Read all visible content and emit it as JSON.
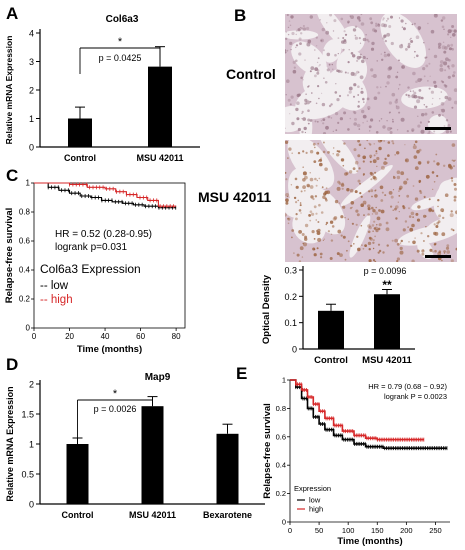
{
  "panels": {
    "A": "A",
    "B": "B",
    "C": "C",
    "D": "D",
    "E": "E"
  },
  "panel_b": {
    "control_label": "Control",
    "treated_label": "MSU 42011",
    "colors": {
      "tissue": "#d7c2cf",
      "lumen": "#f2eef0",
      "stain_control": "#9d7b8b",
      "stain_treated": "#9a5f3a"
    }
  },
  "chart_data": [
    {
      "panel": "A",
      "type": "bar",
      "title": "Col6a3",
      "ylabel": "Relative mRNA Expression",
      "categories": [
        "Control",
        "MSU 42011"
      ],
      "values": [
        1.0,
        2.82
      ],
      "errors": [
        0.4,
        0.7
      ],
      "ylim": [
        0,
        4
      ],
      "yticks": [
        0,
        1,
        2,
        3,
        4
      ],
      "annotation": {
        "star": "*",
        "p": "p = 0.0425"
      },
      "bar_color": "#000000"
    },
    {
      "panel": "B",
      "type": "bar",
      "ylabel": "Optical Density",
      "categories": [
        "Control",
        "MSU 42011"
      ],
      "values": [
        0.145,
        0.208
      ],
      "errors": [
        0.025,
        0.018
      ],
      "ylim": [
        0,
        0.3
      ],
      "yticks": [
        0,
        0.1,
        0.2,
        0.3
      ],
      "annotation": {
        "p": "p = 0.0096",
        "star": "**"
      },
      "bar_color": "#000000"
    },
    {
      "panel": "C",
      "type": "line",
      "xlabel": "Time (months)",
      "ylabel": "Relapse-free survival",
      "xlim": [
        0,
        85
      ],
      "ylim": [
        0,
        1
      ],
      "xticks": [
        0,
        20,
        40,
        60,
        80
      ],
      "yticks": [
        0,
        0.2,
        0.4,
        0.6,
        0.8,
        1
      ],
      "text_hr": "HR = 0.52 (0.28-0.95)",
      "text_p": "logrank p=0.031",
      "legend_title": "Col6a3 Expression",
      "legend_labels": [
        "-- low",
        "-- high"
      ],
      "series": [
        {
          "name": "low",
          "color": "#000000",
          "x": [
            0,
            8,
            14,
            20,
            26,
            32,
            38,
            44,
            50,
            56,
            62,
            70,
            80
          ],
          "y": [
            1.0,
            0.97,
            0.95,
            0.93,
            0.91,
            0.9,
            0.88,
            0.87,
            0.86,
            0.85,
            0.84,
            0.83,
            0.83
          ]
        },
        {
          "name": "high",
          "color": "#d62728",
          "x": [
            0,
            20,
            30,
            40,
            46,
            52,
            58,
            64,
            70,
            80
          ],
          "y": [
            1.0,
            0.99,
            0.97,
            0.96,
            0.94,
            0.92,
            0.9,
            0.88,
            0.84,
            0.84
          ]
        }
      ]
    },
    {
      "panel": "D",
      "type": "bar",
      "title": "Map9",
      "ylabel": "Relative mRNA Expression",
      "categories": [
        "Control",
        "MSU 42011",
        "Bexarotene"
      ],
      "values": [
        1.0,
        1.63,
        1.17
      ],
      "errors": [
        0.1,
        0.16,
        0.16
      ],
      "ylim": [
        0,
        2
      ],
      "yticks": [
        0,
        0.5,
        1,
        1.5,
        2
      ],
      "annotation": {
        "star": "*",
        "p": "p = 0.0026"
      },
      "bar_color": "#000000"
    },
    {
      "panel": "E",
      "type": "line",
      "xlabel": "Time (months)",
      "ylabel": "Relapse-free survival",
      "xlim": [
        0,
        275
      ],
      "ylim": [
        0,
        1
      ],
      "xticks": [
        0,
        50,
        100,
        150,
        200,
        250
      ],
      "yticks": [
        0,
        0.2,
        0.4,
        0.6,
        0.8,
        1
      ],
      "text_hr": "HR = 0.79 (0.68 − 0.92)",
      "text_p": "logrank P = 0.0023",
      "legend_title": "Expression",
      "legend_labels": [
        "low",
        "high"
      ],
      "series": [
        {
          "name": "low",
          "color": "#000000",
          "x": [
            0,
            10,
            20,
            30,
            40,
            50,
            60,
            75,
            90,
            110,
            130,
            160,
            200,
            270
          ],
          "y": [
            1.0,
            0.95,
            0.87,
            0.8,
            0.74,
            0.69,
            0.65,
            0.61,
            0.58,
            0.55,
            0.53,
            0.52,
            0.52,
            0.52
          ]
        },
        {
          "name": "high",
          "color": "#d62728",
          "x": [
            0,
            10,
            20,
            30,
            40,
            50,
            60,
            75,
            90,
            110,
            130,
            150,
            180,
            230
          ],
          "y": [
            1.0,
            0.97,
            0.93,
            0.88,
            0.83,
            0.78,
            0.73,
            0.68,
            0.64,
            0.61,
            0.59,
            0.58,
            0.58,
            0.58
          ]
        }
      ]
    }
  ]
}
